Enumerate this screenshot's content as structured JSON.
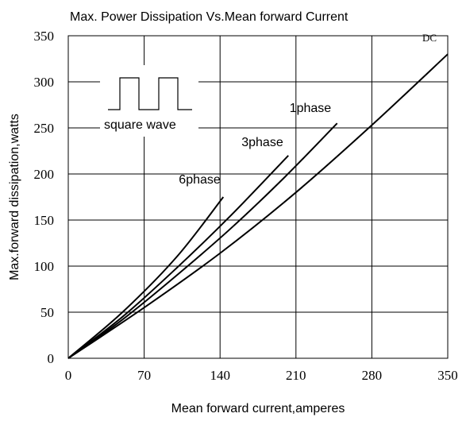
{
  "chart_data": {
    "type": "line",
    "title": "Max. Power Dissipation Vs.Mean forward Current",
    "xlabel": "Mean forward current,amperes",
    "ylabel": "Max.forward dissipation,watts",
    "xlim": [
      0,
      350
    ],
    "ylim": [
      0,
      350
    ],
    "xticks": [
      "0",
      "70",
      "140",
      "210",
      "280",
      "350"
    ],
    "yticks": [
      "0",
      "50",
      "100",
      "150",
      "200",
      "250",
      "300",
      "350"
    ],
    "grid": true,
    "series": [
      {
        "name": "DC",
        "x": [
          0,
          70,
          140,
          210,
          280,
          350
        ],
        "y": [
          0,
          55,
          114,
          180,
          253,
          330
        ]
      },
      {
        "name": "1phase",
        "x": [
          0,
          50,
          100,
          150,
          200,
          248
        ],
        "y": [
          0,
          42,
          90,
          141,
          197,
          255
        ]
      },
      {
        "name": "3phase",
        "x": [
          0,
          50,
          100,
          150,
          203
        ],
        "y": [
          0,
          45,
          98,
          155,
          220
        ]
      },
      {
        "name": "6phase",
        "x": [
          0,
          50,
          100,
          143
        ],
        "y": [
          0,
          50,
          110,
          175
        ]
      }
    ],
    "annotations": [
      "square wave"
    ]
  },
  "colors": {
    "line": "#000000",
    "grid": "#000000",
    "background": "#ffffff"
  }
}
